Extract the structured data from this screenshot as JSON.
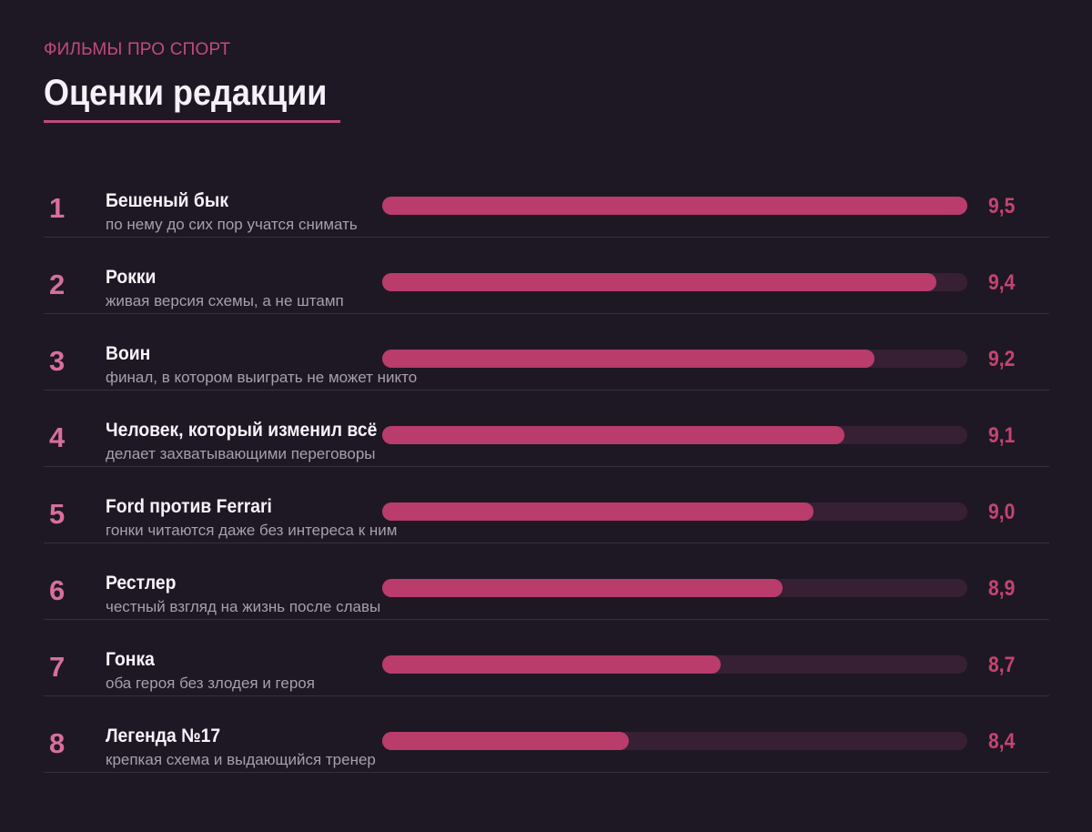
{
  "header": {
    "kicker": "ФИЛЬМЫ ПРО СПОРТ",
    "title": "Оценки редакции"
  },
  "colors": {
    "background": "#1d1824",
    "accent": "#b93c6b",
    "rank": "#d86f9b",
    "track": "#372033"
  },
  "chart_data": {
    "type": "bar",
    "orientation": "horizontal",
    "title": "Оценки редакции",
    "xlim": [
      0,
      9.5
    ],
    "grid": false,
    "legend": "none",
    "rows": [
      {
        "rank": "1",
        "name": "Бешеный бык",
        "note": "по нему до сих пор учатся снимать",
        "value": 9.5,
        "label": "9,5"
      },
      {
        "rank": "2",
        "name": "Рокки",
        "note": "живая версия схемы, а не штамп",
        "value": 9.4,
        "label": "9,4"
      },
      {
        "rank": "3",
        "name": "Воин",
        "note": "финал, в котором выиграть не может никто",
        "value": 9.2,
        "label": "9,2"
      },
      {
        "rank": "4",
        "name": "Человек, который изменил всё",
        "note": "делает захватывающими переговоры",
        "value": 9.1,
        "label": "9,1"
      },
      {
        "rank": "5",
        "name": "Ford против Ferrari",
        "note": "гонки читаются даже без интереса к ним",
        "value": 9.0,
        "label": "9,0"
      },
      {
        "rank": "6",
        "name": "Рестлер",
        "note": "честный взгляд на жизнь после славы",
        "value": 8.9,
        "label": "8,9"
      },
      {
        "rank": "7",
        "name": "Гонка",
        "note": "оба героя без злодея и героя",
        "value": 8.7,
        "label": "8,7"
      },
      {
        "rank": "8",
        "name": "Легенда №17",
        "note": "крепкая схема и выдающийся тренер",
        "value": 8.4,
        "label": "8,4"
      }
    ]
  }
}
